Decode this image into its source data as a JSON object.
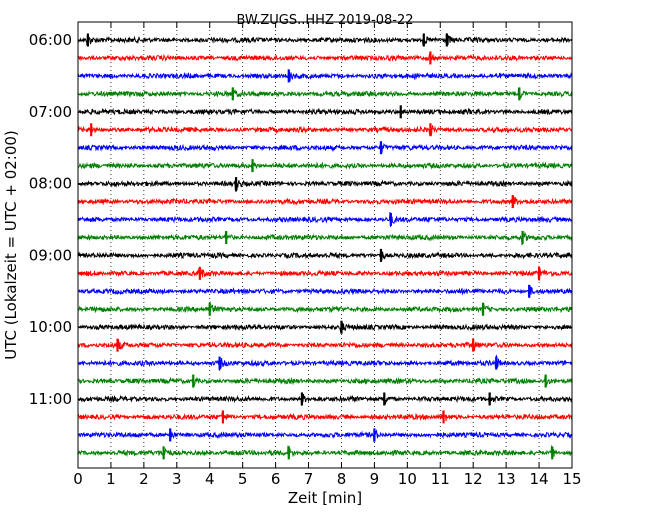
{
  "chart_data": {
    "type": "line",
    "title": "BW.ZUGS..HHZ 2019-08-22",
    "xlabel": "Zeit  [min]",
    "ylabel": "UTC (Lokalzeit = UTC + 02:00)",
    "xlim": [
      0,
      15
    ],
    "xticks": [
      "0",
      "1",
      "2",
      "3",
      "4",
      "5",
      "6",
      "7",
      "8",
      "9",
      "10",
      "11",
      "12",
      "13",
      "14",
      "15"
    ],
    "yticks": [
      {
        "label": "06:00",
        "trace": 0
      },
      {
        "label": "07:00",
        "trace": 4
      },
      {
        "label": "08:00",
        "trace": 8
      },
      {
        "label": "09:00",
        "trace": 12
      },
      {
        "label": "10:00",
        "trace": 16
      },
      {
        "label": "11:00",
        "trace": 20
      }
    ],
    "grid": "vertical dotted",
    "trace_minutes": 15,
    "color_cycle": [
      "#000000",
      "#ff0000",
      "#0000ff",
      "#008000"
    ],
    "traces": [
      {
        "start": "06:00",
        "events": [
          0.3,
          10.5,
          11.2
        ]
      },
      {
        "start": "06:15",
        "events": [
          10.7
        ]
      },
      {
        "start": "06:30",
        "events": [
          6.4
        ]
      },
      {
        "start": "06:45",
        "events": [
          4.7,
          13.4
        ]
      },
      {
        "start": "07:00",
        "events": [
          9.8
        ]
      },
      {
        "start": "07:15",
        "events": [
          0.4,
          10.7
        ]
      },
      {
        "start": "07:30",
        "events": [
          9.2
        ]
      },
      {
        "start": "07:45",
        "events": [
          5.3
        ]
      },
      {
        "start": "08:00",
        "events": [
          4.8
        ]
      },
      {
        "start": "08:15",
        "events": [
          13.2
        ]
      },
      {
        "start": "08:30",
        "events": [
          9.5
        ]
      },
      {
        "start": "08:45",
        "events": [
          4.5,
          13.5
        ]
      },
      {
        "start": "09:00",
        "events": [
          9.2
        ]
      },
      {
        "start": "09:15",
        "events": [
          3.7,
          14.0
        ]
      },
      {
        "start": "09:30",
        "events": [
          13.7
        ]
      },
      {
        "start": "09:45",
        "events": [
          4.0,
          12.3
        ]
      },
      {
        "start": "10:00",
        "events": [
          8.0
        ]
      },
      {
        "start": "10:15",
        "events": [
          1.2,
          12.0
        ]
      },
      {
        "start": "10:30",
        "events": [
          4.3,
          12.7
        ]
      },
      {
        "start": "10:45",
        "events": [
          3.5,
          14.2
        ]
      },
      {
        "start": "11:00",
        "events": [
          6.8,
          9.3,
          12.5
        ]
      },
      {
        "start": "11:15",
        "events": [
          4.4,
          11.1
        ]
      },
      {
        "start": "11:30",
        "events": [
          2.8,
          9.0
        ]
      },
      {
        "start": "11:45",
        "events": [
          2.6,
          6.4,
          14.4
        ]
      }
    ]
  }
}
